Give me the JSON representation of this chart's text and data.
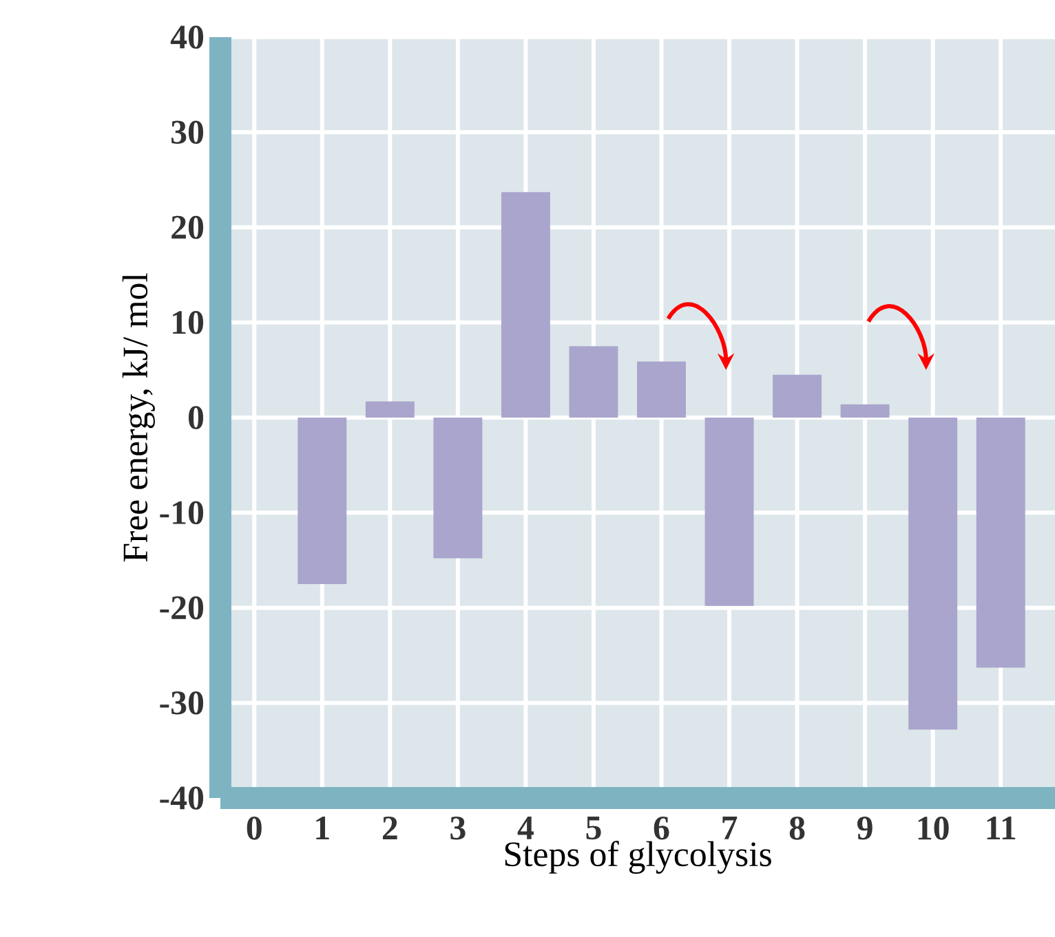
{
  "chart_data": {
    "type": "bar",
    "xlabel": "Steps of glycolysis",
    "ylabel": "Free energy, kJ/ mol",
    "categories": [
      "0",
      "1",
      "2",
      "3",
      "4",
      "5",
      "6",
      "7",
      "8",
      "9",
      "10",
      "11"
    ],
    "values": [
      null,
      -17.5,
      1.7,
      -14.8,
      23.7,
      7.5,
      5.9,
      -19.8,
      4.5,
      1.4,
      -32.8,
      -26.3
    ],
    "color": "#aaa5cc",
    "ylim": [
      -40,
      40
    ],
    "yticks": [
      -40,
      -30,
      -20,
      -10,
      0,
      10,
      20,
      30,
      40
    ],
    "grid": true
  }
}
